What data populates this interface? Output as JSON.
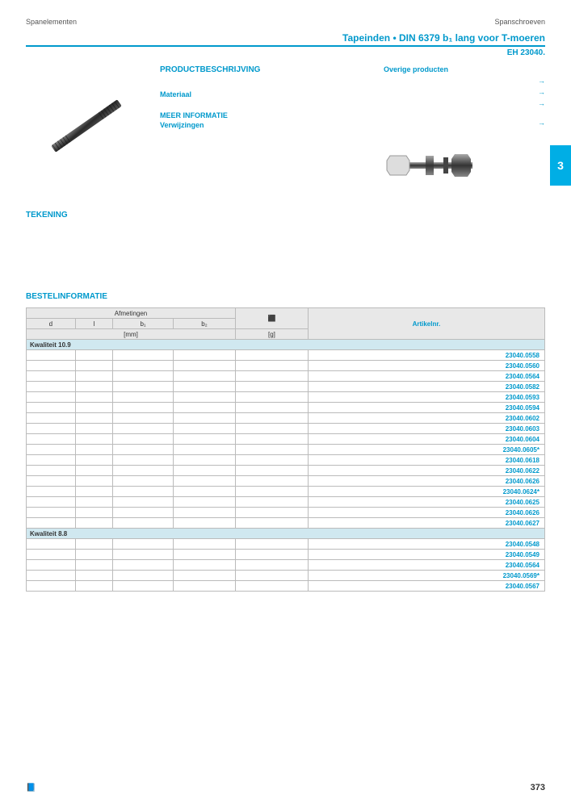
{
  "header": {
    "left": "Spanelementen",
    "right": "Spanschroeven"
  },
  "title": "Tapeinden • DIN 6379 b₁ lang voor T-moeren",
  "subtitle": "EH 23040.",
  "side_tab": "3",
  "desc": {
    "heading": "PRODUCTBESCHRIJVING",
    "materiaal": "Materiaal",
    "meer_info": "MEER INFORMATIE",
    "verwijzingen": "Verwijzingen",
    "overige": "Overige producten"
  },
  "tekening": "TEKENING",
  "bestel": "BESTELINFORMATIE",
  "table": {
    "afmetingen": "Afmetingen",
    "artikelnr": "Artikelnr.",
    "d": "d",
    "l": "l",
    "b1": "b₁",
    "b2": "b₂",
    "mm": "[mm]",
    "g": "[g]",
    "group1": "Kwaliteit 10.9",
    "group2": "Kwaliteit 8.8",
    "part_numbers_1": [
      "23040.0558",
      "23040.0560",
      "23040.0564",
      "23040.0582",
      "23040.0593",
      "23040.0594",
      "23040.0602",
      "23040.0603",
      "23040.0604",
      "23040.0605*",
      "23040.0618",
      "23040.0622",
      "23040.0626",
      "23040.0624*",
      "23040.0625",
      "23040.0626",
      "23040.0627"
    ],
    "part_numbers_2": [
      "23040.0548",
      "23040.0549",
      "23040.0564",
      "23040.0569*",
      "23040.0567"
    ]
  },
  "page_num": "373",
  "footer_icon": "📘",
  "colors": {
    "accent": "#0099cc",
    "tab_bg": "#00aee5",
    "table_header": "#e8e8e8",
    "group_bg": "#d0e8f0",
    "border": "#bbb",
    "screw": "#3a3a3a"
  }
}
